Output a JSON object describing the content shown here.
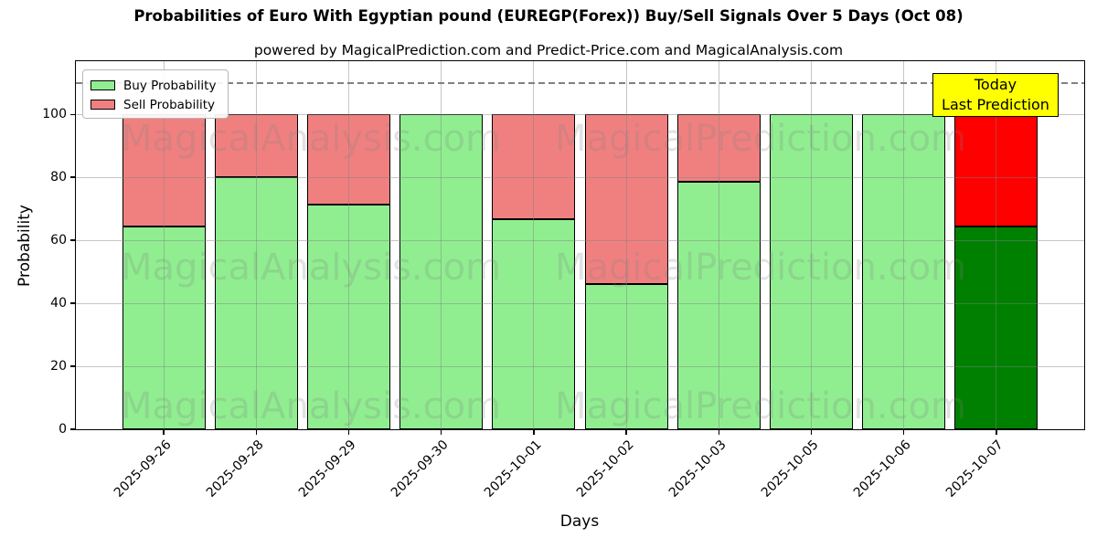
{
  "title": "Probabilities of Euro With Egyptian pound (EUREGP(Forex)) Buy/Sell Signals Over 5 Days (Oct 08)",
  "subtitle": "powered by MagicalPrediction.com and Predict-Price.com and MagicalAnalysis.com",
  "axes": {
    "xlabel": "Days",
    "ylabel": "Probability",
    "yticks": [
      0,
      20,
      40,
      60,
      80,
      100
    ],
    "ylim": [
      0,
      117
    ],
    "grid": true,
    "dashed_line_y": 110
  },
  "legend": {
    "position": "upper left",
    "items": [
      {
        "label": "Buy Probability",
        "color": "#90EE90"
      },
      {
        "label": "Sell Probability",
        "color": "#F08080"
      }
    ]
  },
  "annotation": {
    "line1": "Today",
    "line2": "Last Prediction",
    "bg_color": "#FFFF00",
    "border_color": "#000000"
  },
  "watermarks": {
    "texts": [
      "MagicalAnalysis.com",
      "MagicalPrediction.com"
    ],
    "color": "#808080",
    "opacity": 0.22
  },
  "colors": {
    "buy": "#90EE90",
    "sell": "#F08080",
    "today_buy": "#008000",
    "today_sell": "#FF0000",
    "bar_edge": "#000000",
    "grid": "#B0B0B0",
    "dashed_line": "#808080",
    "background": "#FFFFFF"
  },
  "chart_data": {
    "type": "bar",
    "stacked": true,
    "title": "Probabilities of Euro With Egyptian pound (EUREGP(Forex)) Buy/Sell Signals Over 5 Days (Oct 08)",
    "xlabel": "Days",
    "ylabel": "Probability",
    "ylim": [
      0,
      117
    ],
    "legend_position": "upper left",
    "grid": true,
    "categories": [
      "2025-09-26",
      "2025-09-28",
      "2025-09-29",
      "2025-09-30",
      "2025-10-01",
      "2025-10-02",
      "2025-10-03",
      "2025-10-05",
      "2025-10-06",
      "2025-10-07"
    ],
    "series": [
      {
        "name": "Buy Probability",
        "values": [
          64.29,
          80.0,
          71.43,
          100.0,
          66.67,
          46.15,
          78.57,
          100.0,
          100.0,
          64.29
        ]
      },
      {
        "name": "Sell Probability",
        "values": [
          35.71,
          20.0,
          28.57,
          0.0,
          33.33,
          53.85,
          21.43,
          0.0,
          0.0,
          35.71
        ]
      }
    ],
    "today_index": 9,
    "today_label": "Today\nLast Prediction"
  }
}
